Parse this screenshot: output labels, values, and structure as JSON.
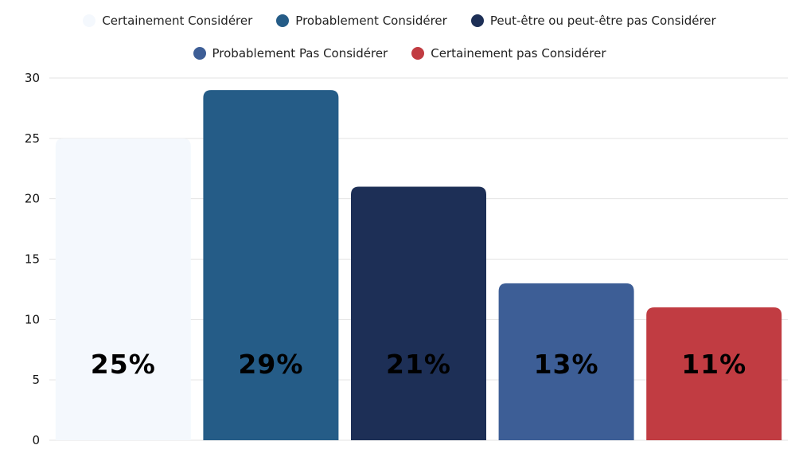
{
  "chart_data": {
    "type": "bar",
    "categories": [
      "Certainement Considérer",
      "Probablement Considérer",
      "Peut-être ou peut-être pas Considérer",
      "Probablement Pas Considérer",
      "Certainement pas Considérer"
    ],
    "values": [
      25,
      29,
      21,
      13,
      11
    ],
    "data_labels": [
      "25%",
      "29%",
      "21%",
      "13%",
      "11%"
    ],
    "colors": [
      "#F4F8FD",
      "#255C87",
      "#1D2F56",
      "#3D5E96",
      "#C13C42"
    ],
    "yticks": [
      "0",
      "5",
      "10",
      "15",
      "20",
      "25",
      "30"
    ],
    "ylim": [
      0,
      30
    ],
    "grid": true,
    "legend_position": "top-center",
    "title": "",
    "xlabel": "",
    "ylabel": ""
  }
}
